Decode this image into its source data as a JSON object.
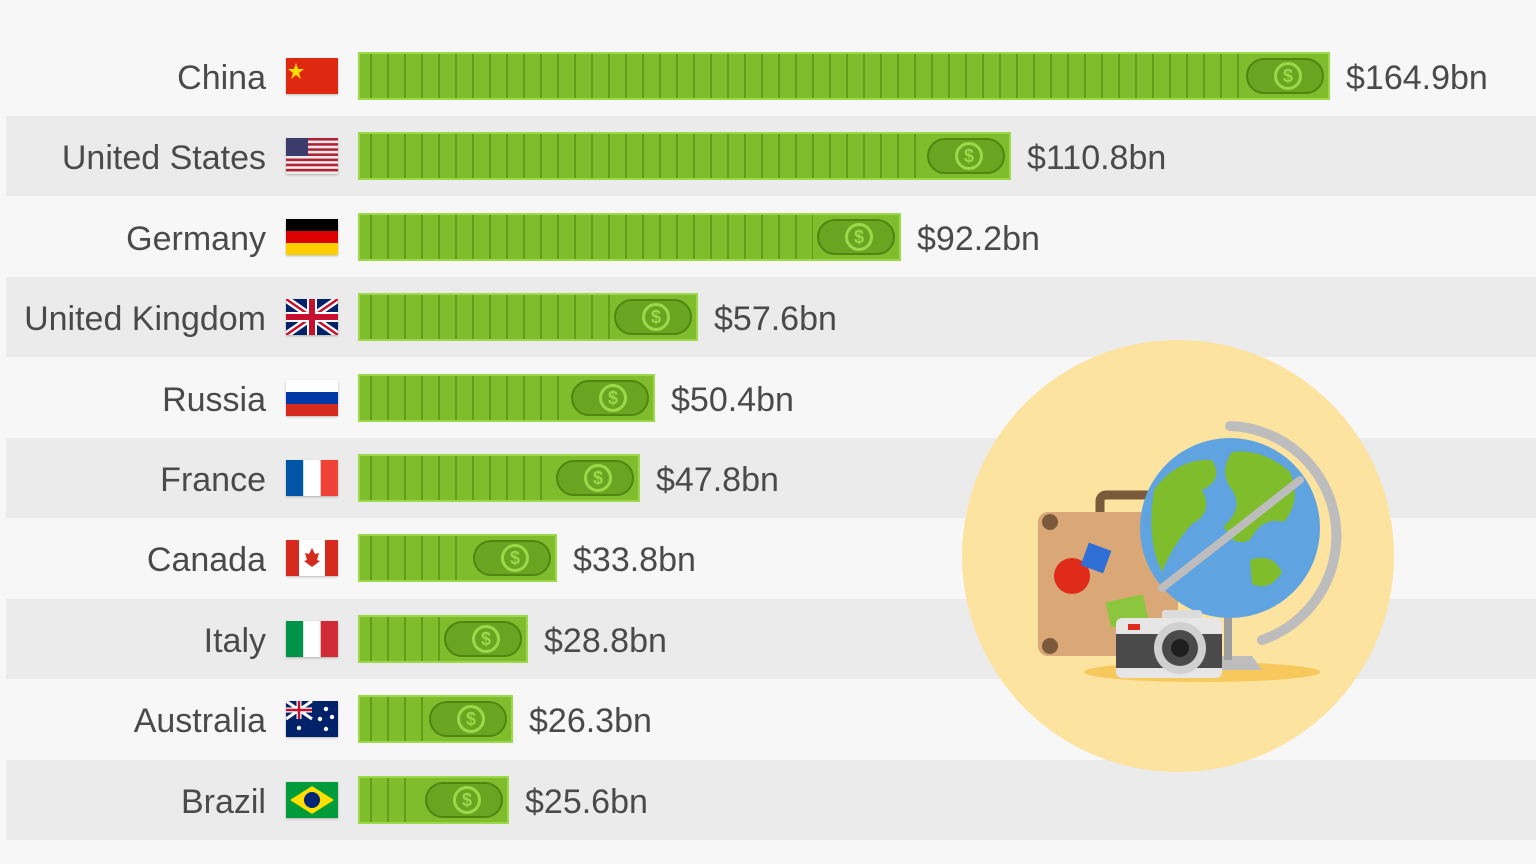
{
  "chart_data": {
    "type": "bar",
    "orientation": "horizontal",
    "categories": [
      "China",
      "United States",
      "Germany",
      "United Kingdom",
      "Russia",
      "France",
      "Canada",
      "Italy",
      "Australia",
      "Brazil"
    ],
    "values": [
      164.9,
      110.8,
      92.2,
      57.6,
      50.4,
      47.8,
      33.8,
      28.8,
      26.3,
      25.6
    ],
    "value_labels": [
      "$164.9bn",
      "$110.8bn",
      "$92.2bn",
      "$57.6bn",
      "$50.4bn",
      "$47.8bn",
      "$33.8bn",
      "$28.8bn",
      "$26.3bn",
      "$25.6bn"
    ],
    "flags": [
      "china-flag-icon",
      "united-states-flag-icon",
      "germany-flag-icon",
      "united-kingdom-flag-icon",
      "russia-flag-icon",
      "france-flag-icon",
      "canada-flag-icon",
      "italy-flag-icon",
      "australia-flag-icon",
      "brazil-flag-icon"
    ],
    "bar_style": "banknote-stack-icon",
    "bar_color": "#7fbd2c",
    "grid": false,
    "legend": "none",
    "xlim": [
      0,
      164.9
    ]
  },
  "illustration": {
    "icon": "travel-globe-suitcase-camera-icon",
    "background_color": "#fde3a0"
  }
}
